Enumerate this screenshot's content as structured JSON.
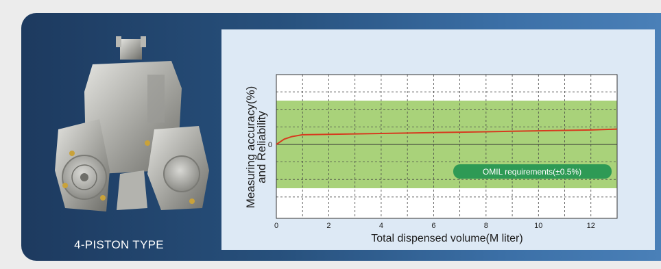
{
  "product": {
    "label": "4-PISTON TYPE"
  },
  "colors": {
    "banner": "#27507c",
    "panel": "#dde9f5",
    "band": "#a9d27a",
    "line": "#d63b1f",
    "badge": "#2e9a55"
  },
  "chart_data": {
    "type": "line",
    "ylabel_line1": "Measuring accuracy(%)",
    "ylabel_line2": "and Reliability",
    "xlabel": "Total dispensed volume(M liter)",
    "xlim": [
      0,
      13
    ],
    "x_ticks": [
      "0",
      "2",
      "4",
      "6",
      "8",
      "10",
      "12"
    ],
    "y_tick_label": "0",
    "band_label": "OMIL requirements(±0.5%)",
    "band": [
      -0.5,
      0.5
    ],
    "ylim": [
      -0.8,
      0.8
    ],
    "grid": true,
    "series": [
      {
        "x": [
          0,
          0.3,
          0.6,
          1,
          2,
          3,
          4,
          5,
          6,
          7,
          8,
          9,
          10,
          11,
          12,
          13
        ],
        "y": [
          0.0,
          0.06,
          0.09,
          0.11,
          0.115,
          0.12,
          0.125,
          0.13,
          0.135,
          0.14,
          0.145,
          0.15,
          0.155,
          0.16,
          0.165,
          0.175
        ]
      }
    ]
  }
}
